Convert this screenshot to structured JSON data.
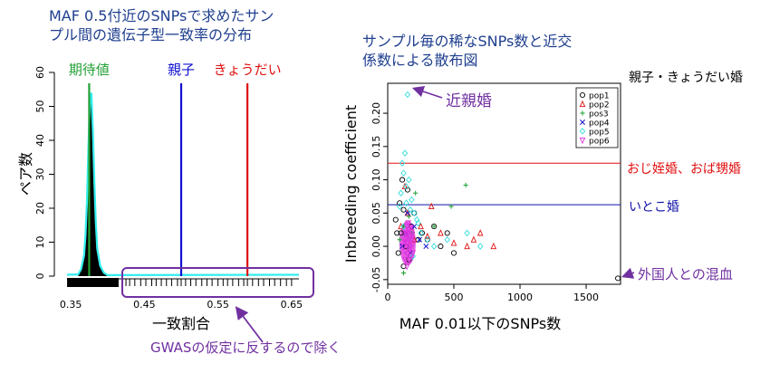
{
  "colors": {
    "title": "#1f3f8f",
    "green": "#22a035",
    "blue": "#1010d0",
    "red": "#e01010",
    "purple": "#7030a0",
    "cyan": "#33eeee",
    "navy": "#1111aa"
  },
  "left_title": [
    "MAF 0.5付近のSNPsで求めたサン",
    "プル間の遺伝子型一致率の分布"
  ],
  "right_title": [
    "サンプル毎の稀なSNPs数と近交",
    "係数による散布図"
  ],
  "annotations": {
    "gwas": "GWASの仮定に反するので除く",
    "parent_child_sibling": "親子・きょうだい婚",
    "inbred": "近親婚",
    "uncle_aunt": "おじ姪婚、おば甥婚",
    "cousin": "いとこ婚",
    "foreigner": "外国人との混血"
  },
  "chart_data": [
    {
      "type": "bar",
      "xlabel": "一致割合",
      "ylabel": "ペア数",
      "xticks": [
        "0.35",
        "0.45",
        "0.55",
        "0.65"
      ],
      "yticks": [
        "0",
        "10",
        "20",
        "30",
        "40",
        "50",
        "60"
      ],
      "xlim": [
        0.34,
        0.66
      ],
      "ylim": [
        0,
        60
      ],
      "x": [
        0.36,
        0.364,
        0.368,
        0.37,
        0.372,
        0.374,
        0.376,
        0.378,
        0.38,
        0.382,
        0.384,
        0.386,
        0.39,
        0.395,
        0.4
      ],
      "values": [
        0.5,
        2,
        6,
        12,
        22,
        38,
        52,
        54,
        43,
        28,
        16,
        8,
        3,
        1,
        0.3
      ],
      "vlines": [
        {
          "label": "期待値",
          "x": 0.375,
          "color": "#22a035"
        },
        {
          "label": "親子",
          "x": 0.5,
          "color": "#1010d0"
        },
        {
          "label": "きょうだい",
          "x": 0.59,
          "color": "#e01010"
        }
      ],
      "rug_outliers": [
        0.425,
        0.43,
        0.437,
        0.445,
        0.452,
        0.46,
        0.466,
        0.473,
        0.48,
        0.487,
        0.495,
        0.5,
        0.506,
        0.513,
        0.52,
        0.528,
        0.535,
        0.542,
        0.55,
        0.557,
        0.563,
        0.57,
        0.578,
        0.585,
        0.59,
        0.597,
        0.605,
        0.612,
        0.62,
        0.627,
        0.635,
        0.643,
        0.65
      ]
    },
    {
      "type": "scatter",
      "xlabel": "MAF 0.01以下のSNPs数",
      "ylabel": "Inbreeding coefficient",
      "xticks": [
        "0",
        "500",
        "1000",
        "1500"
      ],
      "yticks": [
        "-0.05",
        "0.00",
        "0.05",
        "0.10",
        "0.15",
        "0.20"
      ],
      "xlim": [
        0,
        1760
      ],
      "ylim": [
        -0.057,
        0.245
      ],
      "legend_position": "top-right",
      "hlines": [
        {
          "y": 0.125,
          "color": "#e01010"
        },
        {
          "y": 0.0625,
          "color": "#1111aa"
        }
      ],
      "series": [
        {
          "name": "pop1",
          "symbol": "circle",
          "color": "#000000",
          "points": [
            [
              60,
              0.04
            ],
            [
              80,
              -0.01
            ],
            [
              100,
              0.02
            ],
            [
              120,
              0.055
            ],
            [
              140,
              0.0
            ],
            [
              160,
              -0.02
            ],
            [
              180,
              0.03
            ],
            [
              200,
              0.05
            ],
            [
              230,
              0.01
            ],
            [
              260,
              0.02
            ],
            [
              300,
              0.01
            ],
            [
              350,
              0.03
            ],
            [
              400,
              0.0
            ],
            [
              450,
              0.02
            ],
            [
              500,
              -0.01
            ],
            [
              90,
              0.065
            ],
            [
              70,
              0.02
            ],
            [
              120,
              -0.03
            ],
            [
              1740,
              -0.048
            ],
            [
              110,
              0.1
            ],
            [
              150,
              0.085
            ]
          ]
        },
        {
          "name": "pop2",
          "symbol": "triangle",
          "color": "#e01010",
          "points": [
            [
              100,
              0.03
            ],
            [
              150,
              0.05
            ],
            [
              200,
              0.01
            ],
            [
              300,
              0.015
            ],
            [
              400,
              0.02
            ],
            [
              500,
              0.005
            ],
            [
              600,
              0.0
            ],
            [
              650,
              0.01
            ],
            [
              700,
              0.02
            ],
            [
              800,
              0.0
            ],
            [
              330,
              0.06
            ],
            [
              250,
              0.03
            ],
            [
              130,
              0.09
            ]
          ]
        },
        {
          "name": "pos3",
          "symbol": "plus",
          "color": "#22a035",
          "points": [
            [
              90,
              0.01
            ],
            [
              120,
              0.03
            ],
            [
              180,
              0.02
            ],
            [
              350,
              0.03
            ],
            [
              480,
              0.06
            ],
            [
              590,
              0.092
            ],
            [
              120,
              -0.04
            ],
            [
              160,
              0.045
            ],
            [
              210,
              0.08
            ]
          ]
        },
        {
          "name": "pop4",
          "symbol": "cross",
          "color": "#1010d0",
          "points": [
            [
              110,
              0.0
            ],
            [
              140,
              0.02
            ],
            [
              170,
              -0.01
            ],
            [
              200,
              0.03
            ],
            [
              240,
              0.01
            ],
            [
              290,
              0.0
            ],
            [
              150,
              0.05
            ]
          ]
        },
        {
          "name": "pop5",
          "symbol": "diamond",
          "color": "#33dddd",
          "points": [
            [
              150,
              0.228
            ],
            [
              90,
              0.06
            ],
            [
              100,
              0.08
            ],
            [
              120,
              0.11
            ],
            [
              140,
              0.09
            ],
            [
              160,
              0.1
            ],
            [
              180,
              0.07
            ],
            [
              200,
              0.05
            ],
            [
              220,
              0.04
            ],
            [
              250,
              0.02
            ],
            [
              300,
              0.01
            ],
            [
              350,
              0.0
            ],
            [
              450,
              0.01
            ],
            [
              600,
              0.02
            ],
            [
              700,
              0.0
            ],
            [
              120,
              0.03
            ],
            [
              160,
              0.012
            ],
            [
              190,
              -0.015
            ],
            [
              110,
              0.125
            ],
            [
              130,
              0.14
            ],
            [
              140,
              0.065
            ],
            [
              170,
              0.055
            ],
            [
              230,
              0.035
            ]
          ]
        },
        {
          "name": "pop6",
          "symbol": "triangle-down",
          "color": "#dd33dd",
          "points": [
            [
              120,
              0.0
            ],
            [
              130,
              0.01
            ],
            [
              140,
              0.02
            ],
            [
              150,
              0.005
            ],
            [
              160,
              -0.005
            ],
            [
              170,
              0.015
            ],
            [
              180,
              0.01
            ],
            [
              190,
              -0.01
            ],
            [
              145,
              0.03
            ],
            [
              135,
              -0.02
            ],
            [
              160,
              0.025
            ],
            [
              175,
              -0.015
            ],
            [
              130,
              0.006
            ],
            [
              150,
              -0.012
            ],
            [
              165,
              0.008
            ],
            [
              185,
              0.018
            ],
            [
              155,
              0.035
            ],
            [
              145,
              -0.03
            ],
            [
              175,
              0.028
            ],
            [
              140,
              0.012
            ],
            [
              160,
              0.0
            ],
            [
              130,
              -0.008
            ],
            [
              190,
              0.004
            ],
            [
              150,
              0.018
            ],
            [
              165,
              -0.02
            ],
            [
              180,
              0.022
            ],
            [
              145,
              0.005
            ],
            [
              170,
              -0.003
            ],
            [
              155,
              0.012
            ],
            [
              135,
              0.02
            ]
          ]
        }
      ]
    }
  ]
}
